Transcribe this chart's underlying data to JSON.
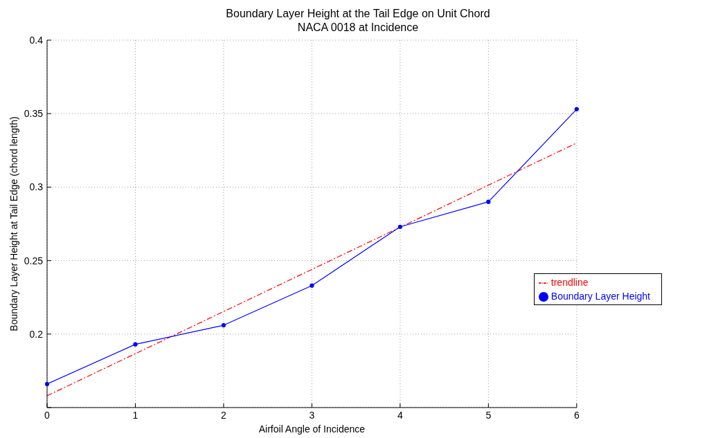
{
  "chart_data": {
    "type": "line",
    "title": "Boundary Layer Height at the Tail Edge on Unit Chord NACA 0018 at Incidence",
    "xlabel": "Airfoil Angle of Incidence",
    "ylabel": "Boundary Layer Height at Tail Edge (chord length)",
    "x": [
      0,
      1,
      2,
      3,
      4,
      5,
      6
    ],
    "series": [
      {
        "name": "trendline",
        "color": "#ff0000",
        "x": [
          0,
          6
        ],
        "values": [
          0.158,
          0.33
        ],
        "marker": "none",
        "line_style": "dashed"
      },
      {
        "name": "Boundary Layer Height",
        "color": "#0000ff",
        "values": [
          0.166,
          0.193,
          0.206,
          0.233,
          0.273,
          0.29,
          0.353
        ],
        "marker": "circle",
        "line_style": "solid"
      }
    ],
    "xlim": [
      0,
      6
    ],
    "xticks": [
      0,
      1,
      2,
      3,
      4,
      5,
      6
    ],
    "ylim": [
      0.15,
      0.4
    ],
    "yticks": [
      {
        "value": 0.15,
        "label": null
      },
      0.2,
      0.25,
      0.3,
      0.35,
      0.4
    ],
    "grid": true,
    "legend": "right"
  }
}
